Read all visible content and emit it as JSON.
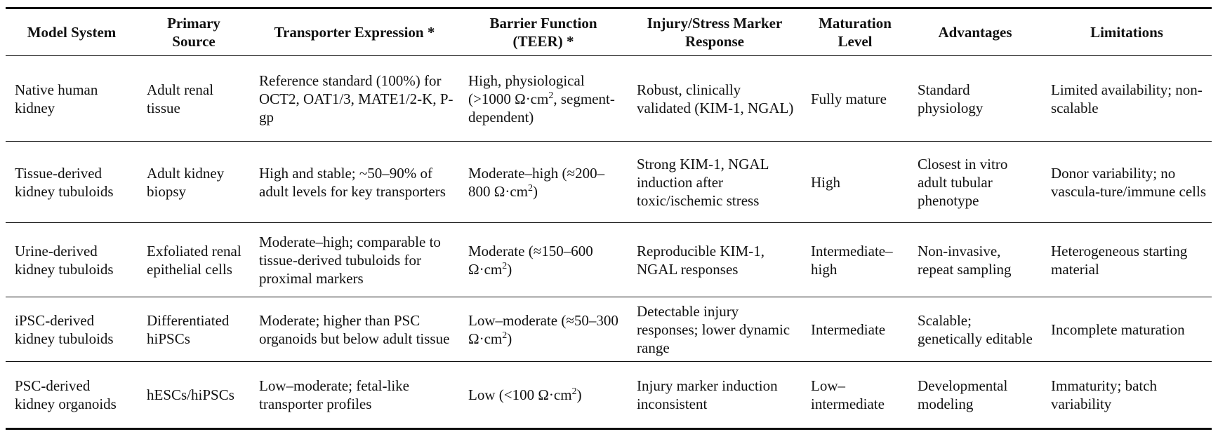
{
  "table": {
    "headers": [
      {
        "line1": "Model System",
        "line2": ""
      },
      {
        "line1": "Primary",
        "line2": "Source"
      },
      {
        "line1": "Transporter Expression *",
        "line2": ""
      },
      {
        "line1": "Barrier Function",
        "line2": "(TEER) *"
      },
      {
        "line1": "Injury/Stress Marker",
        "line2": "Response"
      },
      {
        "line1": "Maturation",
        "line2": "Level"
      },
      {
        "line1": "Advantages",
        "line2": ""
      },
      {
        "line1": "Limitations",
        "line2": ""
      }
    ],
    "rows": [
      {
        "model": "Native human kidney",
        "source": "Adult renal tissue",
        "transporter": "Reference standard (100%) for OCT2, OAT1/3, MATE1/2-K, P-gp",
        "barrier_a": "High, physiological (>1000 Ω·cm",
        "barrier_sup": "2",
        "barrier_b": ", segment-dependent)",
        "injury": "Robust, clinically validated (KIM-1, NGAL)",
        "maturation": "Fully mature",
        "advantages": "Standard physiology",
        "limitations": "Limited availability; non-scalable"
      },
      {
        "model": "Tissue-derived kidney tubuloids",
        "source": "Adult kidney biopsy",
        "transporter": "High and stable; ~50–90% of adult levels for key transporters",
        "barrier_a": "Moderate–high (≈200–800 Ω·cm",
        "barrier_sup": "2",
        "barrier_b": ")",
        "injury": "Strong KIM-1, NGAL induction after toxic/ischemic stress",
        "maturation": "High",
        "advantages": "Closest in vitro adult tubular phenotype",
        "limitations": "Donor variability; no vascula-ture/immune cells"
      },
      {
        "model": "Urine-derived kidney tubuloids",
        "source": "Exfoliated renal epithelial cells",
        "transporter": "Moderate–high; comparable to tissue-derived tubuloids for proximal markers",
        "barrier_a": "Moderate (≈150–600 Ω·cm",
        "barrier_sup": "2",
        "barrier_b": ")",
        "injury": "Reproducible KIM-1, NGAL responses",
        "maturation": "Intermediate–high",
        "advantages": "Non-invasive, repeat sampling",
        "limitations": "Heterogeneous starting material"
      },
      {
        "model": "iPSC-derived kidney tubuloids",
        "source": "Differentiated hiPSCs",
        "transporter": "Moderate; higher than PSC organoids but below adult tissue",
        "barrier_a": "Low–moderate (≈50–300 Ω·cm",
        "barrier_sup": "2",
        "barrier_b": ")",
        "injury": "Detectable injury responses; lower dynamic range",
        "maturation": "Intermediate",
        "advantages": "Scalable; genetically editable",
        "limitations": "Incomplete maturation"
      },
      {
        "model": "PSC-derived kidney organoids",
        "source": "hESCs/hiPSCs",
        "transporter": "Low–moderate; fetal-like transporter profiles",
        "barrier_a": "Low (<100 Ω·cm",
        "barrier_sup": "2",
        "barrier_b": ")",
        "injury": "Injury marker induction inconsistent",
        "maturation": "Low–intermediate",
        "advantages": "Developmental modeling",
        "limitations": "Immaturity; batch variability"
      }
    ]
  }
}
